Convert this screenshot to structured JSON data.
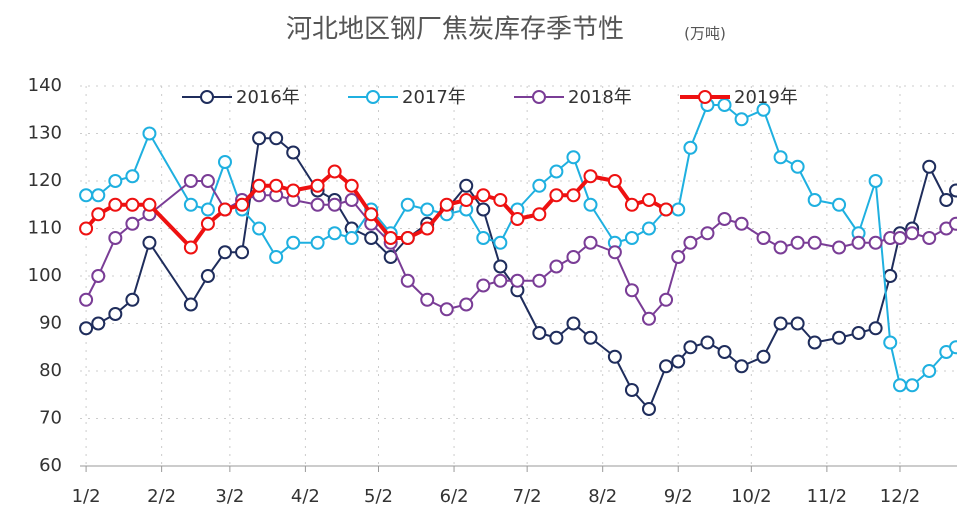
{
  "chart_data": {
    "type": "line",
    "title": "河北地区钢厂焦炭库存季节性",
    "subtitle": "(万吨)",
    "x": [
      0,
      5,
      12,
      19,
      26,
      43,
      50,
      57,
      64,
      71,
      78,
      85,
      95,
      102,
      109,
      117,
      125,
      132,
      140,
      148,
      156,
      163,
      170,
      177,
      186,
      193,
      200,
      207,
      217,
      224,
      231,
      238,
      243,
      248,
      255,
      262,
      269,
      278,
      285,
      292,
      299,
      309,
      317,
      324,
      330,
      334,
      339,
      346,
      353,
      357
    ],
    "series": [
      {
        "name": "2016年",
        "color": "#1f2d5c",
        "width": 2,
        "values": [
          89,
          90,
          92,
          95,
          107,
          94,
          100,
          105,
          105,
          129,
          129,
          126,
          118,
          116,
          110,
          108,
          104,
          108,
          111,
          114,
          119,
          114,
          102,
          97,
          88,
          87,
          90,
          87,
          83,
          76,
          72,
          81,
          82,
          85,
          86,
          84,
          81,
          83,
          90,
          90,
          86,
          87,
          88,
          89,
          100,
          109,
          110,
          123,
          116,
          118
        ]
      },
      {
        "name": "2017年",
        "color": "#1fb0e0",
        "width": 2,
        "values": [
          117,
          117,
          120,
          121,
          130,
          115,
          114,
          124,
          114,
          110,
          104,
          107,
          107,
          109,
          108,
          114,
          109,
          115,
          114,
          113,
          114,
          108,
          107,
          114,
          119,
          122,
          125,
          115,
          107,
          108,
          110,
          114,
          114,
          127,
          136,
          136,
          133,
          135,
          125,
          123,
          116,
          115,
          109,
          120,
          86,
          77,
          77,
          80,
          84,
          85
        ]
      },
      {
        "name": "2018年",
        "color": "#7a3d96",
        "width": 2,
        "values": [
          95,
          100,
          108,
          111,
          113,
          120,
          120,
          114,
          116,
          117,
          117,
          116,
          115,
          115,
          116,
          111,
          107,
          99,
          95,
          93,
          94,
          98,
          99,
          99,
          99,
          102,
          104,
          107,
          105,
          97,
          91,
          95,
          104,
          107,
          109,
          112,
          111,
          108,
          106,
          107,
          107,
          106,
          107,
          107,
          108,
          108,
          109,
          108,
          110,
          111
        ]
      },
      {
        "name": "2019年",
        "color": "#ee1111",
        "width": 4,
        "values": [
          110,
          113,
          115,
          115,
          115,
          106,
          111,
          114,
          115,
          119,
          119,
          118,
          119,
          122,
          119,
          113,
          108,
          108,
          110,
          115,
          116,
          117,
          116,
          112,
          113,
          117,
          117,
          121,
          120,
          115,
          116,
          114,
          null,
          null,
          null,
          null,
          null,
          null,
          null,
          null,
          null,
          null,
          null,
          null,
          null,
          null,
          null,
          null,
          null,
          null
        ]
      }
    ],
    "xlim": [
      -2.5,
      357.4
    ],
    "xticks": [
      {
        "value": 0,
        "label": "1/2"
      },
      {
        "value": 31,
        "label": "2/2"
      },
      {
        "value": 59,
        "label": "3/2"
      },
      {
        "value": 90,
        "label": "4/2"
      },
      {
        "value": 120,
        "label": "5/2"
      },
      {
        "value": 151,
        "label": "6/2"
      },
      {
        "value": 181,
        "label": "7/2"
      },
      {
        "value": 212,
        "label": "8/2"
      },
      {
        "value": 243,
        "label": "9/2"
      },
      {
        "value": 273,
        "label": "10/2"
      },
      {
        "value": 304,
        "label": "11/2"
      },
      {
        "value": 334,
        "label": "12/2"
      }
    ],
    "ylim": [
      60,
      140
    ],
    "yticks": [
      60,
      70,
      80,
      90,
      100,
      110,
      120,
      130,
      140
    ],
    "grid": true,
    "legend": "top"
  }
}
